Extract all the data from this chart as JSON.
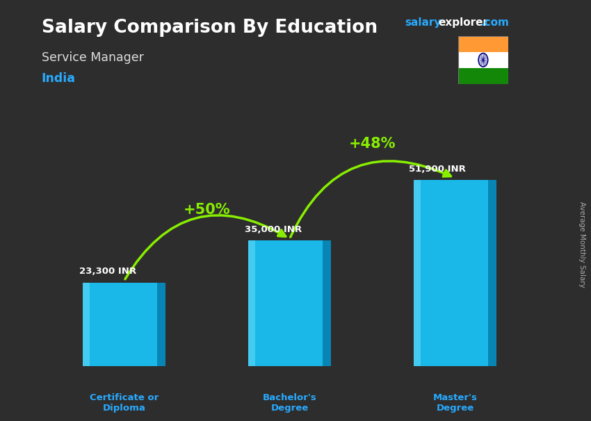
{
  "title": "Salary Comparison By Education",
  "subtitle": "Service Manager",
  "country": "India",
  "ylabel": "Average Monthly Salary",
  "categories": [
    "Certificate or\nDiploma",
    "Bachelor's\nDegree",
    "Master's\nDegree"
  ],
  "values": [
    23300,
    35000,
    51900
  ],
  "value_labels": [
    "23,300 INR",
    "35,000 INR",
    "51,900 INR"
  ],
  "pct_labels": [
    "+50%",
    "+48%"
  ],
  "bar_color": "#1ab8e8",
  "bar_edge_color": "#0090c0",
  "bar_highlight": "#60d8f8",
  "bar_shadow": "#0070a0",
  "bg_color": "#2d2d2d",
  "title_color": "#ffffff",
  "subtitle_color": "#dddddd",
  "country_color": "#29aaff",
  "value_color": "#ffffff",
  "pct_color": "#88ee00",
  "xlabel_color": "#29aaff",
  "website_color": "#29aaff",
  "ylim": [
    0,
    68000
  ],
  "bar_width": 0.5,
  "x_positions": [
    0,
    1,
    2
  ]
}
